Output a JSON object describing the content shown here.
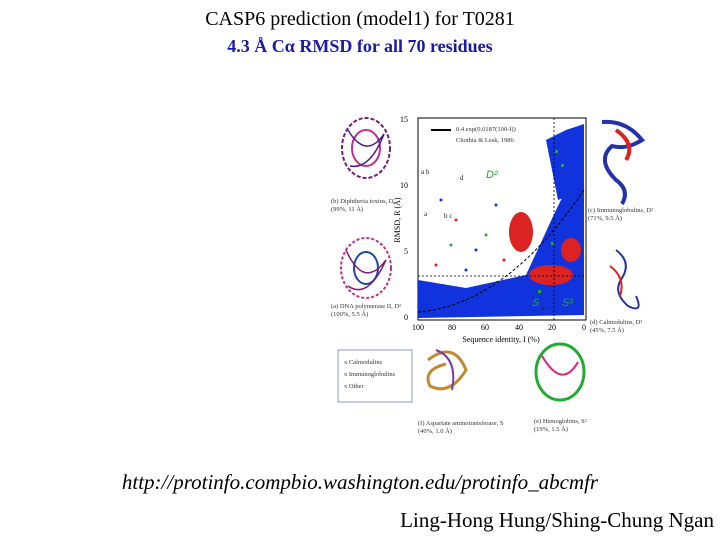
{
  "slide": {
    "title": "CASP6 prediction (model1) for T0281",
    "subtitle": "4.3 Å Cα RMSD for all 70 residues",
    "url": "http://protinfo.compbio.washington.edu/protinfo_abcmfr",
    "authors": "Ling-Hong Hung/Shing-Chung Ngan"
  },
  "figure": {
    "legend_line": "0.4 exp(0.0187(100-I))",
    "legend_ref": "Chothia & Lesk, 1986",
    "ylabel": "RMSD, R (Å)",
    "xlabel": "Sequence identity, I (%)",
    "y_ticks": [
      "15",
      "10",
      "5",
      "0"
    ],
    "x_ticks": [
      "100",
      "80",
      "60",
      "40",
      "20",
      "0"
    ],
    "region_labels": {
      "D2": "D²",
      "S": "S",
      "S2": "S²"
    },
    "point_labels": [
      "a b",
      "d",
      "b c",
      "a",
      "e",
      "f"
    ],
    "captions": {
      "b": [
        "(b) Diphtheria toxins, D",
        "(99%, 11 Å)"
      ],
      "a": [
        "(a) DNA polymerase II, D²",
        "(100%, 5.5 Å)"
      ],
      "c": [
        "(c) Immunoglobulins, D²",
        "(71%, 9.5 Å)"
      ],
      "d": [
        "(d) Calmodulins, D²",
        "(45%, 7.5 Å)"
      ],
      "f": [
        "(f) Aspartate aminotransferase, S",
        "(40%, 1.0 Å)"
      ],
      "e": [
        "(e) Hemoglobins, S²",
        "(19%, 1.5 Å)"
      ]
    },
    "key": [
      "x  Calmodulins",
      "x  Immunoglobulins",
      "x  Other"
    ]
  },
  "colors": {
    "blue_points": "#1133dd",
    "red_points": "#dd2222",
    "green_points": "#22aa33",
    "yellow_region": "#f4ef3a",
    "subtitle": "#1a1aaa"
  }
}
